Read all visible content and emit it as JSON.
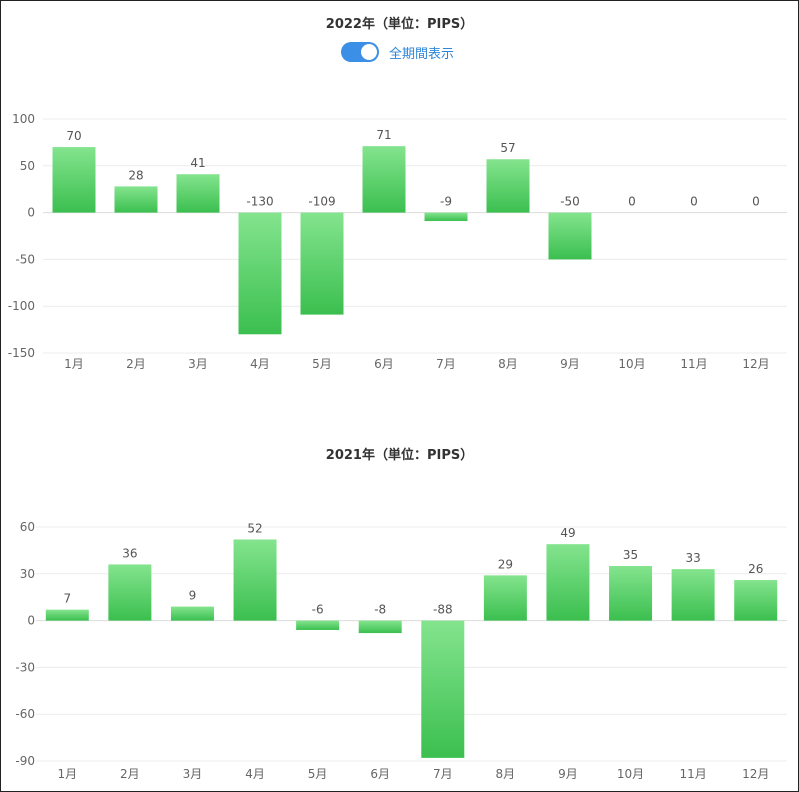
{
  "toggle": {
    "label": "全期間表示",
    "on": true,
    "color": "#3b8fe6"
  },
  "chart_data": [
    {
      "type": "bar",
      "title": "2022年（単位：PIPS）",
      "categories": [
        "1月",
        "2月",
        "3月",
        "4月",
        "5月",
        "6月",
        "7月",
        "8月",
        "9月",
        "10月",
        "11月",
        "12月"
      ],
      "values": [
        70,
        28,
        41,
        -130,
        -109,
        71,
        -9,
        57,
        -50,
        0,
        0,
        0
      ],
      "data_labels": [
        "70",
        "28",
        "41",
        "-130",
        "-109",
        "71",
        "-9",
        "57",
        "-50",
        "0",
        "0",
        "0"
      ],
      "yticks": [
        100,
        50,
        0,
        -50,
        -100,
        -150
      ],
      "ytick_labels": [
        "100",
        "50",
        "0",
        "-50",
        "-100",
        "-150"
      ],
      "ylim": [
        -150,
        100
      ],
      "grid": true,
      "bar_color_top": "#84e48e",
      "bar_color_bottom": "#3bbf4f"
    },
    {
      "type": "bar",
      "title": "2021年（単位：PIPS）",
      "categories": [
        "1月",
        "2月",
        "3月",
        "4月",
        "5月",
        "6月",
        "7月",
        "8月",
        "9月",
        "10月",
        "11月",
        "12月"
      ],
      "values": [
        7,
        36,
        9,
        52,
        -6,
        -8,
        -88,
        29,
        49,
        35,
        33,
        26
      ],
      "data_labels": [
        "7",
        "36",
        "9",
        "52",
        "-6",
        "-8",
        "-88",
        "29",
        "49",
        "35",
        "33",
        "26"
      ],
      "yticks": [
        60,
        30,
        0,
        -30,
        -60,
        -90
      ],
      "ytick_labels": [
        "60",
        "30",
        "0",
        "-30",
        "-60",
        "-90"
      ],
      "ylim": [
        -90,
        60
      ],
      "grid": true,
      "bar_color_top": "#84e48e",
      "bar_color_bottom": "#3bbf4f"
    }
  ]
}
